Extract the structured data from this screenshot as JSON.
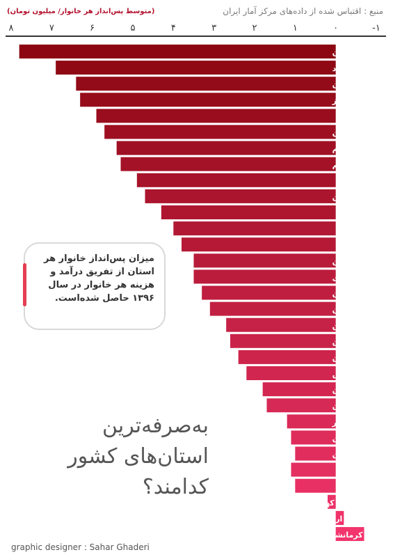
{
  "header": {
    "source": "منبع : اقتباس شده از داده‌های مرکز آمار ایران",
    "unit": "(متوسط پس‌انداز هر خانوار/ میلیون تومان)"
  },
  "info_box": {
    "text": "میزان پس‌انداز خانوار هر استان از تفریق درآمد و هزینه هر خانوار در سال ۱۳۹۶ حاصل شده‌است."
  },
  "title": {
    "line1": "به‌صرفه‌ترین",
    "line2": "استان‌های کشور",
    "line3": "کدامند؟"
  },
  "credit": "graphic designer : Sahar Ghaderi",
  "chart_data": {
    "type": "bar",
    "orientation": "horizontal",
    "x_reversed": true,
    "xlim": [
      -1,
      8
    ],
    "x_ticks": [
      -1,
      0,
      1,
      2,
      3,
      4,
      5,
      6,
      7,
      8
    ],
    "x_tick_labels": [
      "-۱",
      "۰",
      "۱",
      "۲",
      "۳",
      "۴",
      "۵",
      "۶",
      "۷",
      "۸"
    ],
    "unit": "(متوسط پس‌انداز هر خانوار/ میلیون تومان)",
    "categories": [
      "مازندران",
      "یزد",
      "گیلان",
      "البرز",
      "خراسان جنوبی",
      "کرمان",
      "ایلام",
      "قم",
      "آذربایجان شرقی",
      "لرستان",
      "سیستان و بلوچستان",
      "خراسان شمالی",
      "چهارمحال و بختیاری",
      "سمنان",
      "مرکزی",
      "هرمزگان",
      "تهران",
      "قزوین",
      "گلستان",
      "همدان",
      "فارس",
      "اصفهان",
      "خوزستان",
      "بوشهر",
      "زنجان",
      "کردستان",
      "خراسان رضوی",
      "آذربایجان غربی",
      "کهگیلویه و بویراحمد",
      "اردبیل",
      "کرمانشاه"
    ],
    "values": [
      7.8,
      6.9,
      6.4,
      6.3,
      5.9,
      5.7,
      5.4,
      5.3,
      4.9,
      4.7,
      4.3,
      4.0,
      3.8,
      3.5,
      3.5,
      3.3,
      3.1,
      2.7,
      2.6,
      2.4,
      2.2,
      1.8,
      1.7,
      1.2,
      1.1,
      1.0,
      1.1,
      1.0,
      0.2,
      -0.2,
      -0.7
    ],
    "colors": {
      "dark": "#8c0712",
      "light": "#f2356d"
    }
  }
}
